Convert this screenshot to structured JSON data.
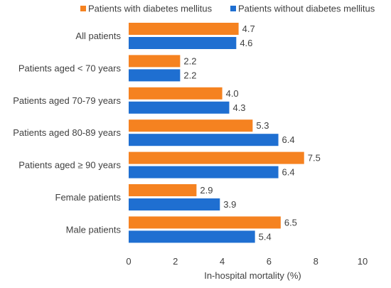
{
  "chart_data": {
    "type": "bar",
    "orientation": "horizontal",
    "categories": [
      "All patients",
      "Patients aged < 70 years",
      "Patients aged 70-79 years",
      "Patients aged 80-89 years",
      "Patients aged ≥ 90 years",
      "Female patients",
      "Male patients"
    ],
    "series": [
      {
        "name": "Patients with diabetes mellitus",
        "color": "#F58220",
        "values": [
          4.7,
          2.2,
          4.0,
          5.3,
          7.5,
          2.9,
          6.5
        ],
        "labels": [
          "4.7",
          "2.2",
          "4.0",
          "5.3",
          "7.5",
          "2.9",
          "6.5"
        ]
      },
      {
        "name": "Patients without diabetes mellitus",
        "color": "#1F6FD1",
        "values": [
          4.6,
          2.2,
          4.3,
          6.4,
          6.4,
          3.9,
          5.4
        ],
        "labels": [
          "4.6",
          "2.2",
          "4.3",
          "6.4",
          "6.4",
          "3.9",
          "5.4"
        ]
      }
    ],
    "xlabel": "In-hospital mortality (%)",
    "ylabel": "",
    "xlim": [
      0,
      10
    ],
    "xticks": [
      0,
      2,
      4,
      6,
      8,
      10
    ],
    "grid": false,
    "legend_position": "top"
  }
}
